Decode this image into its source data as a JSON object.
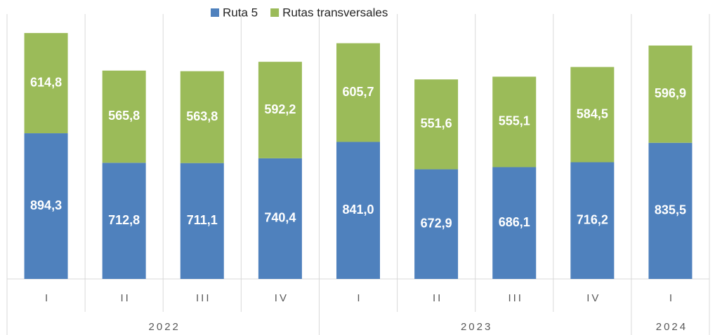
{
  "chart_data": {
    "type": "stacked_bar",
    "categories": [
      "I",
      "II",
      "III",
      "IV",
      "I",
      "II",
      "III",
      "IV",
      "I"
    ],
    "groups": [
      {
        "label": "2022",
        "count": 4
      },
      {
        "label": "2023",
        "count": 4
      },
      {
        "label": "2024",
        "count": 1
      }
    ],
    "series": [
      {
        "name": "Ruta 5",
        "color": "#4f81bd",
        "values": [
          894.3,
          712.8,
          711.1,
          740.4,
          841.0,
          672.9,
          686.1,
          716.2,
          835.5
        ],
        "value_labels": [
          "894,3",
          "712,8",
          "711,1",
          "740,4",
          "841,0",
          "672,9",
          "686,1",
          "716,2",
          "835,5"
        ]
      },
      {
        "name": "Rutas transversales",
        "color": "#9bbb59",
        "values": [
          614.8,
          565.8,
          563.8,
          592.2,
          605.7,
          551.6,
          555.1,
          584.5,
          596.9
        ],
        "value_labels": [
          "614,8",
          "565,8",
          "563,8",
          "592,2",
          "605,7",
          "551,6",
          "555,1",
          "584,5",
          "596,9"
        ]
      }
    ],
    "ylim": [
      0,
      1600
    ],
    "legend": "top"
  }
}
